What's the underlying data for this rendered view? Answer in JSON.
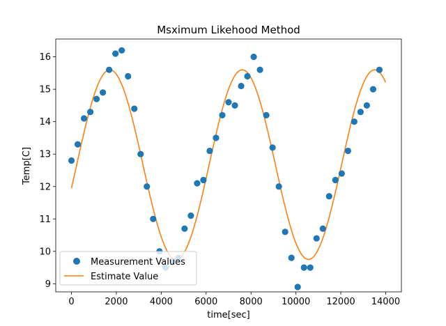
{
  "chart_data": {
    "type": "scatter+line",
    "title": "Msximum Likehood Method",
    "xlabel": "time[sec]",
    "ylabel": "Temp[C]",
    "xlim": [
      -700,
      14700
    ],
    "ylim": [
      8.75,
      16.55
    ],
    "xticks": [
      0,
      2000,
      4000,
      6000,
      8000,
      10000,
      12000,
      14000
    ],
    "xtick_labels": [
      "0",
      "2000",
      "4000",
      "6000",
      "8000",
      "10000",
      "12000",
      "14000"
    ],
    "yticks": [
      9,
      10,
      11,
      12,
      13,
      14,
      15,
      16
    ],
    "ytick_labels": [
      "9",
      "10",
      "11",
      "12",
      "13",
      "14",
      "15",
      "16"
    ],
    "grid": false,
    "legend_position": "lower-left",
    "series": [
      {
        "name": "Measurement Values",
        "kind": "scatter",
        "color": "#1f77b4",
        "x": [
          0,
          280,
          560,
          840,
          1120,
          1400,
          1680,
          1960,
          2240,
          2520,
          2800,
          3080,
          3360,
          3640,
          3920,
          4200,
          4480,
          4760,
          5040,
          5320,
          5600,
          5880,
          6160,
          6440,
          6720,
          7000,
          7280,
          7560,
          7840,
          8120,
          8400,
          8680,
          8960,
          9240,
          9520,
          9800,
          10080,
          10360,
          10640,
          10920,
          11200,
          11480,
          11760,
          12040,
          12320,
          12600,
          12880,
          13160,
          13440,
          13720
        ],
        "y": [
          12.8,
          13.3,
          14.1,
          14.3,
          14.7,
          14.9,
          15.6,
          16.1,
          16.2,
          15.4,
          14.4,
          13.0,
          12.0,
          11.0,
          10.0,
          9.5,
          9.7,
          9.8,
          10.7,
          11.1,
          12.1,
          12.2,
          13.1,
          13.5,
          14.2,
          14.6,
          14.5,
          15.1,
          15.4,
          16.0,
          15.6,
          14.2,
          13.2,
          12.0,
          10.6,
          9.8,
          8.9,
          9.5,
          9.5,
          10.4,
          10.7,
          11.7,
          12.2,
          12.4,
          13.1,
          14.0,
          14.3,
          14.5,
          15.0,
          15.6
        ]
      },
      {
        "name": "Estimate Value",
        "kind": "line",
        "color": "#ff7f0e",
        "model": {
          "mean": 12.675,
          "amplitude": 2.925,
          "period": 5900,
          "peak_time": 1710
        },
        "x_range": [
          0,
          14000
        ]
      }
    ]
  }
}
